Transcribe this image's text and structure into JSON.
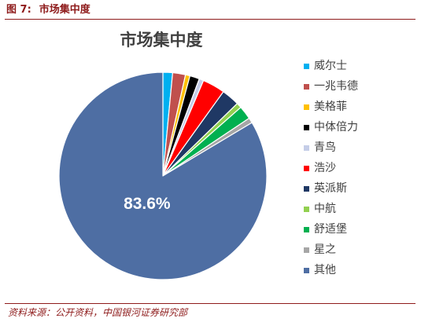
{
  "theme": {
    "accent": "#8E1B1B"
  },
  "caption": {
    "number": "图 7:",
    "title": "市场集中度"
  },
  "chart_data": {
    "type": "pie",
    "title": "市场集中度",
    "legend": "right",
    "slices": [
      {
        "name": "威尔士",
        "value": 1.5,
        "color": "#00B0F0"
      },
      {
        "name": "一兆韦德",
        "value": 2.0,
        "color": "#C0504D"
      },
      {
        "name": "美格菲",
        "value": 0.7,
        "color": "#FFC000"
      },
      {
        "name": "中体倍力",
        "value": 1.5,
        "color": "#000000"
      },
      {
        "name": "青鸟",
        "value": 0.7,
        "color": "#C5CDE8"
      },
      {
        "name": "浩沙",
        "value": 3.5,
        "color": "#FF0000"
      },
      {
        "name": "英派斯",
        "value": 2.8,
        "color": "#1F3864"
      },
      {
        "name": "中航",
        "value": 0.8,
        "color": "#92D050"
      },
      {
        "name": "舒适堡",
        "value": 2.1,
        "color": "#00B050"
      },
      {
        "name": "星之",
        "value": 0.8,
        "color": "#A6A6A6"
      },
      {
        "name": "其他",
        "value": 83.6,
        "color": "#4E6EA3",
        "label": "83.6%"
      }
    ]
  },
  "source": "资料来源：公开资料，中国银河证券研究部"
}
